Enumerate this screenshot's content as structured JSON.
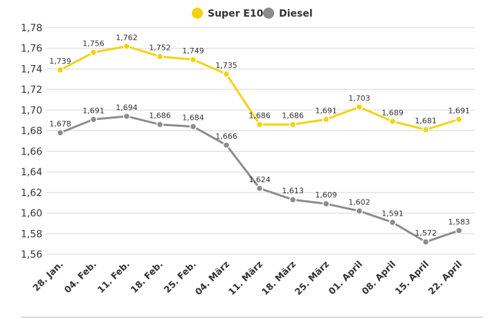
{
  "chart_data": {
    "type": "line",
    "title": "",
    "xlabel": "",
    "ylabel": "",
    "ylim": [
      1.56,
      1.78
    ],
    "yticks": [
      "1,56",
      "1,58",
      "1,60",
      "1,62",
      "1,64",
      "1,66",
      "1,68",
      "1,70",
      "1,72",
      "1,74",
      "1,76",
      "1,78"
    ],
    "grid": true,
    "legend_position": "top-center",
    "categories": [
      "28. Jan.",
      "04. Feb.",
      "11. Feb.",
      "18. Feb.",
      "25. Feb.",
      "04. März",
      "11. März",
      "18. März",
      "25. März",
      "01. April",
      "08. April",
      "15. April",
      "22. April"
    ],
    "series": [
      {
        "name": "Super E10",
        "color": "#f5d20f",
        "values": [
          1.739,
          1.756,
          1.762,
          1.752,
          1.749,
          1.735,
          1.686,
          1.686,
          1.691,
          1.703,
          1.689,
          1.681,
          1.691
        ],
        "labels": [
          "1,739",
          "1,756",
          "1,762",
          "1,752",
          "1,749",
          "1,735",
          "1,686",
          "1,686",
          "1,691",
          "1,703",
          "1,689",
          "1,681",
          "1,691"
        ]
      },
      {
        "name": "Diesel",
        "color": "#8c8c8c",
        "values": [
          1.678,
          1.691,
          1.694,
          1.686,
          1.684,
          1.666,
          1.624,
          1.613,
          1.609,
          1.602,
          1.591,
          1.572,
          1.583
        ],
        "labels": [
          "1,678",
          "1,691",
          "1,694",
          "1,686",
          "1,684",
          "1,666",
          "1,624",
          "1,613",
          "1,609",
          "1,602",
          "1,591",
          "1,572",
          "1,583"
        ]
      }
    ]
  }
}
